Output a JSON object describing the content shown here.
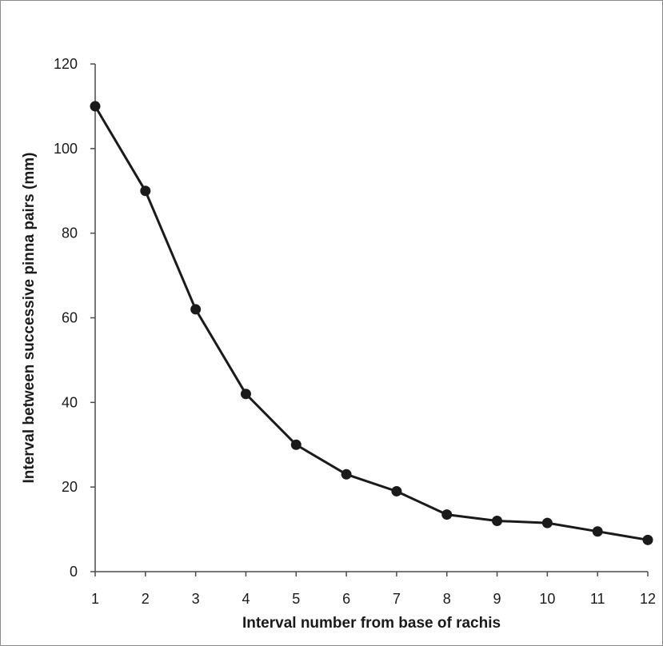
{
  "chart_data": {
    "type": "line",
    "title": "",
    "xlabel": "Interval number from base of rachis",
    "ylabel": "Interval between successive pinna pairs (mm)",
    "x": [
      1,
      2,
      3,
      4,
      5,
      6,
      7,
      8,
      9,
      10,
      11,
      12
    ],
    "series": [
      {
        "values": [
          110,
          90,
          62,
          42,
          30,
          23,
          19,
          13.5,
          12,
          11.5,
          9.5,
          7.5
        ]
      }
    ],
    "xlim": [
      1,
      12
    ],
    "ylim": [
      0,
      120
    ],
    "xticks": [
      "1",
      "2",
      "3",
      "4",
      "5",
      "6",
      "7",
      "8",
      "9",
      "10",
      "11",
      "12"
    ],
    "yticks": [
      "0",
      "20",
      "40",
      "60",
      "80",
      "100",
      "120"
    ],
    "grid": false,
    "legend": "none",
    "line_color": "#1a1a1a",
    "marker": "filled-circle"
  }
}
